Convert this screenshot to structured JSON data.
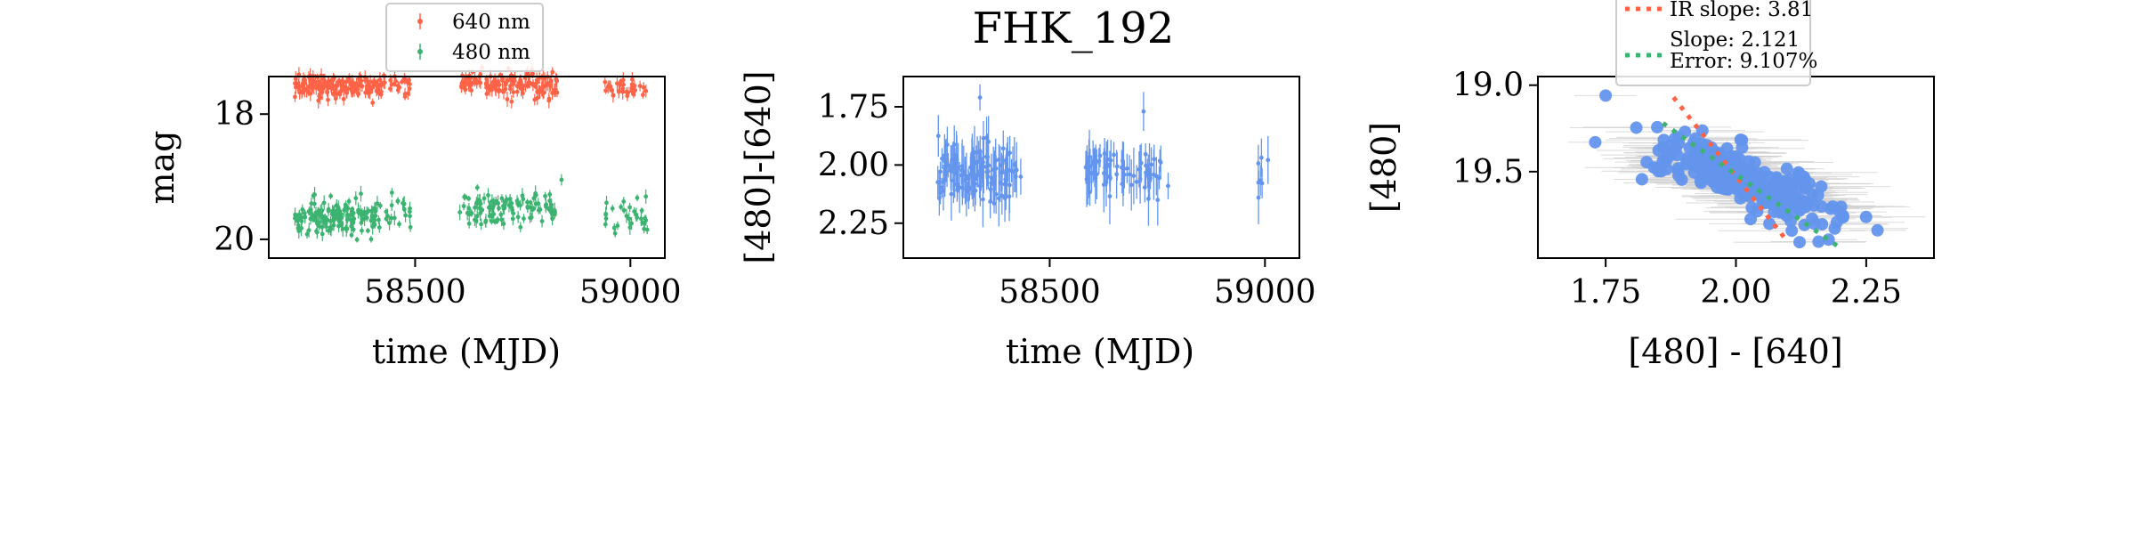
{
  "chart_data": [
    {
      "id": "lightcurve",
      "type": "scatter",
      "title": "",
      "xlabel": "time (MJD)",
      "ylabel": "mag",
      "xlim": [
        58160,
        59080
      ],
      "ylim": [
        20.3,
        17.4
      ],
      "y_inverted": true,
      "xticks": [
        58500,
        59000
      ],
      "yticks": [
        18,
        20
      ],
      "legend_placement": "upper center, above axes",
      "series": [
        {
          "name": "640 nm",
          "color": "#ff6347",
          "mean": 17.55,
          "clusters": [
            {
              "x_range": [
                58220,
                58430
              ],
              "count": 170,
              "y_center": 17.55,
              "y_spread": 0.09
            },
            {
              "x_range": [
                58430,
                58490
              ],
              "count": 20,
              "y_center": 17.56,
              "y_spread": 0.09
            },
            {
              "x_range": [
                58600,
                58830
              ],
              "count": 150,
              "y_center": 17.52,
              "y_spread": 0.1
            },
            {
              "x_range": [
                58940,
                59040
              ],
              "count": 35,
              "y_center": 17.56,
              "y_spread": 0.09
            }
          ]
        },
        {
          "name": "480 nm",
          "color": "#3cb371",
          "mean": 19.6,
          "clusters": [
            {
              "x_range": [
                58220,
                58420
              ],
              "count": 160,
              "y_center": 19.62,
              "y_spread": 0.13
            },
            {
              "x_range": [
                58430,
                58490
              ],
              "count": 20,
              "y_center": 19.55,
              "y_spread": 0.13
            },
            {
              "x_range": [
                58600,
                58830
              ],
              "count": 110,
              "y_center": 19.52,
              "y_spread": 0.13
            },
            {
              "x_range": [
                58940,
                59040
              ],
              "count": 30,
              "y_center": 19.58,
              "y_spread": 0.12
            }
          ],
          "outliers": [
            {
              "x": 58840,
              "y": 19.05
            }
          ]
        }
      ]
    },
    {
      "id": "color_curve",
      "type": "scatter",
      "title": "FHK_192",
      "xlabel": "time (MJD)",
      "ylabel": "[480]-[640]",
      "xlim": [
        58160,
        59080
      ],
      "ylim": [
        2.4,
        1.62
      ],
      "y_inverted": true,
      "xticks": [
        58500,
        59000
      ],
      "yticks": [
        1.75,
        2.0,
        2.25
      ],
      "color": "#6495ed",
      "clusters": [
        {
          "x_range": [
            58240,
            58420
          ],
          "count": 130,
          "y_center": 2.03,
          "y_spread": 0.1
        },
        {
          "x_range": [
            58420,
            58440
          ],
          "count": 4,
          "y_center": 2.04,
          "y_spread": 0.04
        },
        {
          "x_range": [
            58580,
            58760
          ],
          "count": 70,
          "y_center": 2.03,
          "y_spread": 0.08
        },
        {
          "x_range": [
            58960,
            59040
          ],
          "count": 6,
          "y_center": 2.05,
          "y_spread": 0.07
        }
      ],
      "outliers": [
        {
          "x": 58338,
          "y": 1.71
        },
        {
          "x": 58718,
          "y": 1.77
        },
        {
          "x": 58775,
          "y": 2.09
        },
        {
          "x": 58985,
          "y": 2.14
        }
      ]
    },
    {
      "id": "color_magnitude",
      "type": "scatter",
      "title": "",
      "xlabel": "[480] - [640]",
      "ylabel": "[480]",
      "xlim": [
        1.62,
        2.38
      ],
      "ylim": [
        20.0,
        18.95
      ],
      "y_inverted": true,
      "xticks": [
        1.75,
        2.0,
        2.25
      ],
      "yticks": [
        19.0,
        19.5
      ],
      "color": "#6495ed",
      "errorbar_color": "#cccccc",
      "points": {
        "count": 260,
        "slope": 2.121,
        "x_center": 2.02,
        "y_center": 19.55,
        "x_spread": 0.1,
        "y_scatter": 0.12
      },
      "outliers": [
        {
          "x": 1.75,
          "y": 19.06
        },
        {
          "x": 1.73,
          "y": 19.33
        }
      ],
      "lines": [
        {
          "name": "IR slope: 3.81",
          "slope": 3.81,
          "x_range": [
            1.88,
            2.1
          ],
          "anchor": {
            "x": 1.88,
            "y": 19.07
          },
          "color": "#ff6347"
        },
        {
          "name": "Slope: 2.121\nError: 9.107%",
          "slope": 2.121,
          "x_range": [
            1.86,
            2.2
          ],
          "anchor": {
            "x": 1.86,
            "y": 19.22
          },
          "color": "#3cb371"
        }
      ],
      "legend_placement": "upper center, above axes"
    }
  ]
}
